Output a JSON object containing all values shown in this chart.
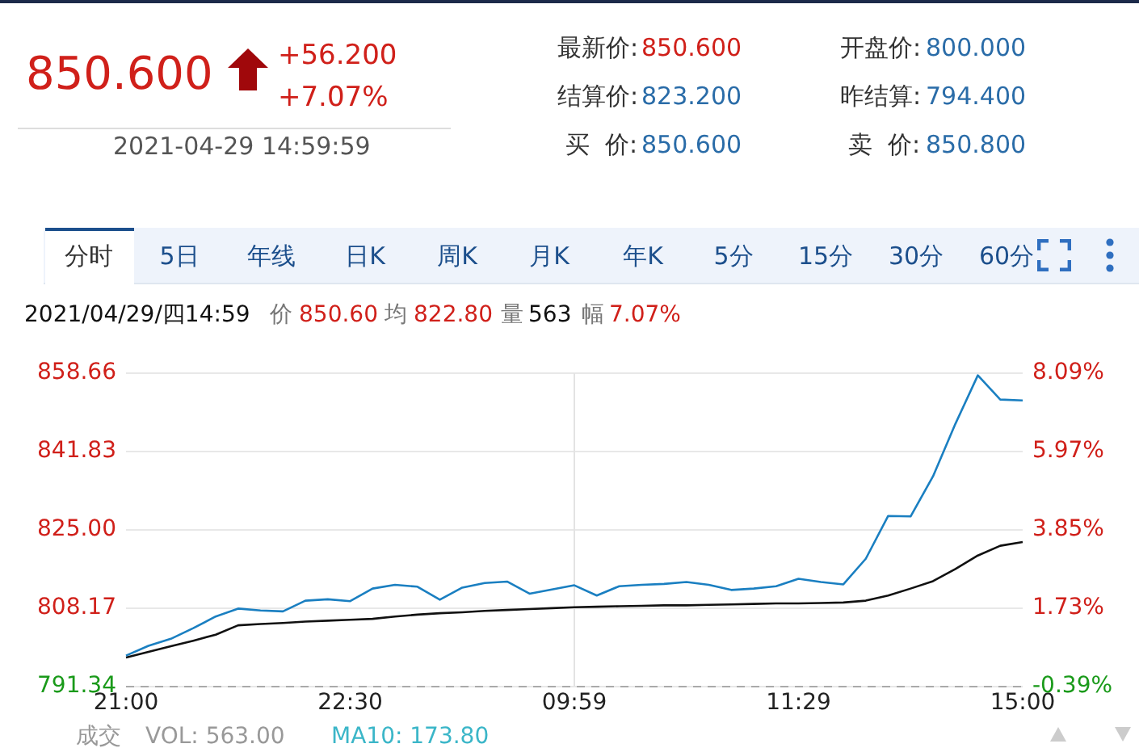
{
  "chart_data": {
    "type": "line",
    "annotations": [
      "850.600",
      "+56.200",
      "+7.07%",
      "2021-04-29 14:59:59",
      "最新价:",
      "850.600",
      "开盘价:",
      "800.000",
      "结算价:",
      "823.200",
      "昨结算:",
      "794.400",
      "买  价:",
      "850.600",
      "卖  价:",
      "850.800",
      "分时",
      "5日",
      "年线",
      "日K",
      "周K",
      "月K",
      "年K",
      "5分",
      "15分",
      "30分",
      "60分",
      "2021/04/29/四14:59",
      "价",
      "850.60",
      "均",
      "822.80",
      "量",
      "563",
      "幅",
      "7.07%",
      "成交",
      "VOL: 563.00",
      "MA10: 173.80"
    ],
    "categories": [
      "21:00",
      null,
      null,
      null,
      null,
      null,
      null,
      null,
      null,
      null,
      "22:30",
      null,
      null,
      null,
      null,
      null,
      null,
      null,
      null,
      null,
      "09:59",
      null,
      null,
      null,
      null,
      null,
      null,
      null,
      null,
      null,
      "11:29",
      null,
      null,
      null,
      null,
      null,
      null,
      null,
      null,
      null,
      "15:00"
    ],
    "ylim": [
      791.34,
      858.66
    ],
    "yticks": [
      791.34,
      808.17,
      {
        "value": 825,
        "label": "825.00"
      },
      841.83,
      858.66
    ],
    "y2lim": [
      -0.39,
      8.09
    ],
    "y2ticks": [
      {
        "value": -0.39,
        "label": "-0.39%"
      },
      {
        "value": 1.73,
        "label": "1.73%"
      },
      {
        "value": 3.85,
        "label": "3.85%"
      },
      {
        "value": 5.97,
        "label": "5.97%"
      },
      {
        "value": 8.09,
        "label": "8.09%"
      }
    ],
    "grid": "y",
    "legend": false,
    "marker": "none",
    "line_style": "solid",
    "ref_lines": [
      {
        "axis": "y",
        "value": 791.34,
        "color": "#aaaaaa",
        "line_style": "dashed"
      },
      {
        "axis": "x",
        "value": "09:59",
        "color": "#e3e3e3",
        "line_style": "solid"
      }
    ],
    "series": [
      {
        "color": "#1a7fc1",
        "values": [
          798,
          800.1,
          801.6,
          803.9,
          806.4,
          808.1,
          807.7,
          807.5,
          809.8,
          810.1,
          809.7,
          812.4,
          813.2,
          812.8,
          810,
          812.6,
          813.6,
          813.9,
          811.3,
          812.2,
          813.1,
          810.9,
          812.9,
          813.2,
          813.4,
          813.8,
          813.2,
          812.1,
          812.4,
          812.9,
          814.5,
          813.8,
          813.3,
          818.8,
          828,
          827.9,
          836.5,
          847.8,
          858.2,
          853,
          852.8
        ]
      },
      {
        "color": "#111111",
        "values": [
          797.6,
          798.8,
          800,
          801.2,
          802.5,
          804.5,
          804.8,
          805,
          805.3,
          805.5,
          805.7,
          805.9,
          806.4,
          806.8,
          807.1,
          807.3,
          807.6,
          807.8,
          808,
          808.2,
          808.4,
          808.5,
          808.6,
          808.7,
          808.8,
          808.8,
          808.9,
          809,
          809.1,
          809.2,
          809.2,
          809.3,
          809.4,
          809.8,
          810.9,
          812.4,
          814,
          816.6,
          819.5,
          821.6,
          822.4
        ]
      }
    ]
  }
}
